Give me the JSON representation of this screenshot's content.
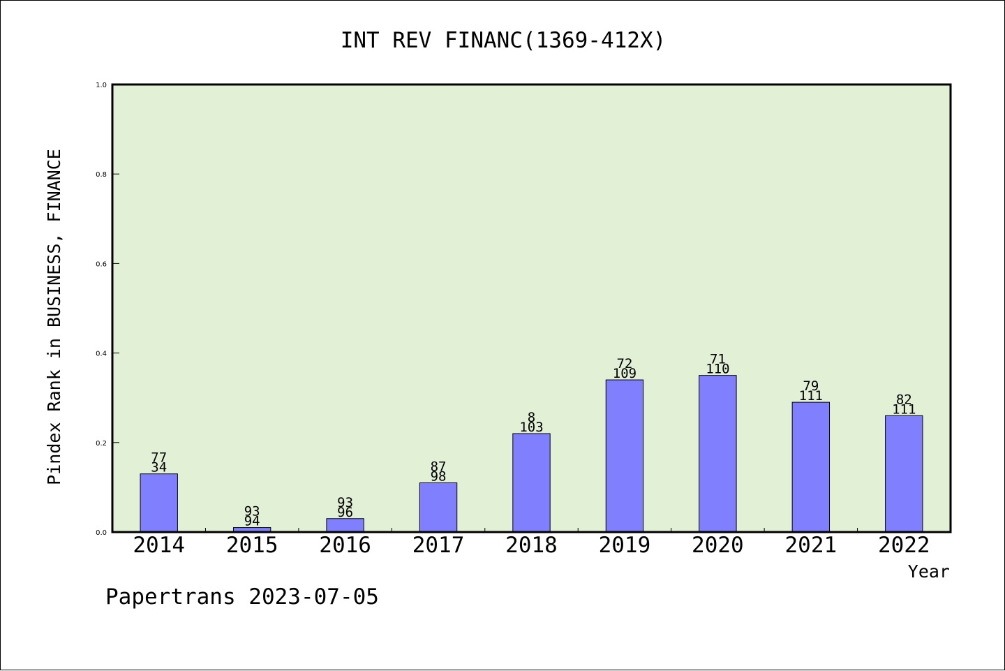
{
  "chart_data": {
    "type": "bar",
    "title": "INT REV FINANC(1369-412X)",
    "xlabel": "Year",
    "ylabel": "Pindex Rank in BUSINESS, FINANCE",
    "ylim": [
      0.0,
      1.0
    ],
    "yticks": [
      "0.0",
      "0.2",
      "0.4",
      "0.6",
      "0.8",
      "1.0"
    ],
    "categories": [
      "2014",
      "2015",
      "2016",
      "2017",
      "2018",
      "2019",
      "2020",
      "2021",
      "2022"
    ],
    "values": [
      0.13,
      0.01,
      0.03,
      0.11,
      0.22,
      0.34,
      0.35,
      0.29,
      0.26
    ],
    "bar_labels_top": [
      "77",
      "93",
      "93",
      "87",
      "8",
      "72",
      "71",
      "79",
      "82"
    ],
    "bar_labels_bottom": [
      "34",
      "94",
      "96",
      "98",
      "103",
      "109",
      "110",
      "111",
      "111"
    ],
    "grid": false,
    "legend": "none",
    "colors": {
      "plot_background": "#e2f0d6",
      "bar_fill": "#8080ff",
      "bar_stroke": "#000000",
      "axis": "#000000"
    }
  },
  "footer": {
    "text": "Papertrans 2023-07-05"
  }
}
